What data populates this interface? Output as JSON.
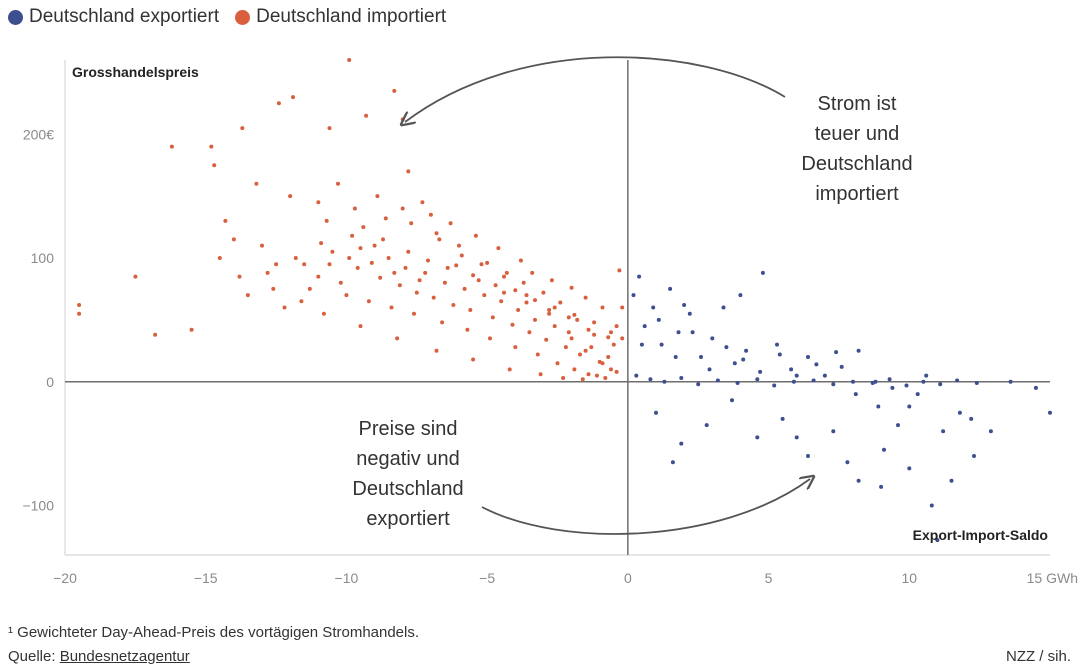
{
  "legend": {
    "export_label": "Deutschland exportiert",
    "import_label": "Deutschland importiert",
    "export_color": "#3e4f8f",
    "import_color": "#d8603f"
  },
  "annotations": {
    "top_right": [
      "Strom ist",
      "teuer und",
      "Deutschland",
      "importiert"
    ],
    "bottom_left": [
      "Preise sind",
      "negativ und",
      "Deutschland",
      "exportiert"
    ]
  },
  "footer": {
    "footnote": "¹ Gewichteter Day-Ahead-Preis des vortägigen Stromhandels.",
    "source_prefix": "Quelle: ",
    "source_name": "Bundesnetzagentur",
    "credit": "NZZ / sih."
  },
  "chart_data": {
    "type": "scatter",
    "ylabel": "Grosshandelspreis",
    "xlabel": "Export-Import-Saldo",
    "xlim": [
      -20,
      15
    ],
    "ylim": [
      -140,
      260
    ],
    "x_ticks": [
      "−20",
      "−15",
      "−10",
      "−5",
      "0",
      "5",
      "10",
      "15 GWh"
    ],
    "x_tick_values": [
      -20,
      -15,
      -10,
      -5,
      0,
      5,
      10,
      15
    ],
    "y_ticks": [
      "200€",
      "100",
      "0",
      "−100"
    ],
    "y_tick_values": [
      200,
      100,
      0,
      -100
    ],
    "grid": false,
    "legend_position": "top-left",
    "series": [
      {
        "name": "Deutschland importiert",
        "color": "#d8603f",
        "points": [
          [
            -19.5,
            62
          ],
          [
            -19.5,
            55
          ],
          [
            -17.5,
            85
          ],
          [
            -16.8,
            38
          ],
          [
            -16.2,
            190
          ],
          [
            -15.5,
            42
          ],
          [
            -14.8,
            190
          ],
          [
            -14.7,
            175
          ],
          [
            -14.3,
            130
          ],
          [
            -14.0,
            115
          ],
          [
            -13.7,
            205
          ],
          [
            -13.2,
            160
          ],
          [
            -12.4,
            225
          ],
          [
            -11.9,
            230
          ],
          [
            -10.6,
            205
          ],
          [
            -9.9,
            260
          ],
          [
            -9.3,
            215
          ],
          [
            -8.3,
            235
          ],
          [
            -8.0,
            212
          ],
          [
            -7.8,
            170
          ],
          [
            -7.3,
            145
          ],
          [
            -6.8,
            120
          ],
          [
            -6.0,
            110
          ],
          [
            -5.2,
            95
          ],
          [
            -4.4,
            85
          ],
          [
            -3.6,
            70
          ],
          [
            -2.8,
            55
          ],
          [
            -2.1,
            40
          ],
          [
            -1.5,
            25
          ],
          [
            -0.9,
            15
          ],
          [
            -0.4,
            8
          ],
          [
            -0.2,
            60
          ],
          [
            -0.3,
            90
          ],
          [
            -0.6,
            10
          ],
          [
            -1.1,
            5
          ],
          [
            -1.6,
            2
          ],
          [
            -2.3,
            3
          ],
          [
            -3.1,
            6
          ],
          [
            -4.2,
            10
          ],
          [
            -5.5,
            18
          ],
          [
            -6.8,
            25
          ],
          [
            -8.2,
            35
          ],
          [
            -9.5,
            45
          ],
          [
            -10.8,
            55
          ],
          [
            -12.2,
            60
          ],
          [
            -13.5,
            70
          ],
          [
            -11.5,
            95
          ],
          [
            -10.5,
            105
          ],
          [
            -9.8,
            118
          ],
          [
            -9.0,
            110
          ],
          [
            -8.5,
            100
          ],
          [
            -7.9,
            92
          ],
          [
            -7.2,
            88
          ],
          [
            -6.5,
            80
          ],
          [
            -5.8,
            75
          ],
          [
            -5.1,
            70
          ],
          [
            -4.5,
            65
          ],
          [
            -3.9,
            58
          ],
          [
            -3.3,
            50
          ],
          [
            -2.6,
            45
          ],
          [
            -2.0,
            35
          ],
          [
            -1.3,
            28
          ],
          [
            -0.7,
            20
          ],
          [
            -11.0,
            85
          ],
          [
            -10.2,
            80
          ],
          [
            -9.6,
            92
          ],
          [
            -8.8,
            84
          ],
          [
            -8.1,
            78
          ],
          [
            -7.5,
            72
          ],
          [
            -6.9,
            68
          ],
          [
            -6.2,
            62
          ],
          [
            -5.6,
            58
          ],
          [
            -4.8,
            52
          ],
          [
            -4.1,
            46
          ],
          [
            -3.5,
            40
          ],
          [
            -2.9,
            34
          ],
          [
            -2.2,
            28
          ],
          [
            -1.7,
            22
          ],
          [
            -1.0,
            16
          ],
          [
            -12.8,
            88
          ],
          [
            -11.8,
            100
          ],
          [
            -10.9,
            112
          ],
          [
            -9.4,
            125
          ],
          [
            -8.6,
            132
          ],
          [
            -7.7,
            128
          ],
          [
            -6.7,
            115
          ],
          [
            -5.9,
            102
          ],
          [
            -5.0,
            96
          ],
          [
            -4.3,
            88
          ],
          [
            -3.7,
            80
          ],
          [
            -3.0,
            72
          ],
          [
            -2.4,
            64
          ],
          [
            -1.8,
            50
          ],
          [
            -1.2,
            38
          ],
          [
            -0.5,
            30
          ],
          [
            -13.0,
            110
          ],
          [
            -12.5,
            95
          ],
          [
            -11.3,
            75
          ],
          [
            -10.0,
            70
          ],
          [
            -9.2,
            65
          ],
          [
            -8.4,
            60
          ],
          [
            -7.6,
            55
          ],
          [
            -6.6,
            48
          ],
          [
            -5.7,
            42
          ],
          [
            -4.9,
            35
          ],
          [
            -4.0,
            28
          ],
          [
            -3.2,
            22
          ],
          [
            -2.5,
            15
          ],
          [
            -1.9,
            10
          ],
          [
            -1.4,
            6
          ],
          [
            -0.8,
            3
          ],
          [
            -14.5,
            100
          ],
          [
            -13.8,
            85
          ],
          [
            -12.0,
            150
          ],
          [
            -11.0,
            145
          ],
          [
            -10.3,
            160
          ],
          [
            -9.7,
            140
          ],
          [
            -8.9,
            150
          ],
          [
            -8.0,
            140
          ],
          [
            -7.0,
            135
          ],
          [
            -6.3,
            128
          ],
          [
            -5.4,
            118
          ],
          [
            -4.6,
            108
          ],
          [
            -3.8,
            98
          ],
          [
            -3.4,
            88
          ],
          [
            -2.7,
            82
          ],
          [
            -2.0,
            76
          ],
          [
            -1.5,
            68
          ],
          [
            -0.9,
            60
          ],
          [
            -0.4,
            45
          ],
          [
            -0.2,
            35
          ],
          [
            -12.6,
            75
          ],
          [
            -11.6,
            65
          ],
          [
            -10.6,
            95
          ],
          [
            -9.9,
            100
          ],
          [
            -9.1,
            96
          ],
          [
            -8.3,
            88
          ],
          [
            -7.4,
            82
          ],
          [
            -6.4,
            92
          ],
          [
            -5.5,
            86
          ],
          [
            -4.7,
            78
          ],
          [
            -4.0,
            74
          ],
          [
            -3.3,
            66
          ],
          [
            -2.6,
            60
          ],
          [
            -1.9,
            54
          ],
          [
            -1.2,
            48
          ],
          [
            -0.6,
            40
          ],
          [
            -10.7,
            130
          ],
          [
            -9.5,
            108
          ],
          [
            -8.7,
            115
          ],
          [
            -7.8,
            105
          ],
          [
            -7.1,
            98
          ],
          [
            -6.1,
            94
          ],
          [
            -5.3,
            82
          ],
          [
            -4.4,
            72
          ],
          [
            -3.6,
            64
          ],
          [
            -2.8,
            58
          ],
          [
            -2.1,
            52
          ],
          [
            -1.4,
            42
          ],
          [
            -0.7,
            36
          ]
        ]
      },
      {
        "name": "Deutschland exportiert",
        "color": "#3e4f8f",
        "points": [
          [
            0.2,
            70
          ],
          [
            0.4,
            85
          ],
          [
            0.6,
            45
          ],
          [
            0.9,
            60
          ],
          [
            1.2,
            30
          ],
          [
            1.5,
            75
          ],
          [
            1.8,
            40
          ],
          [
            2.2,
            55
          ],
          [
            2.6,
            20
          ],
          [
            3.0,
            35
          ],
          [
            3.4,
            60
          ],
          [
            3.8,
            15
          ],
          [
            4.2,
            25
          ],
          [
            4.8,
            88
          ],
          [
            5.3,
            30
          ],
          [
            5.8,
            10
          ],
          [
            6.4,
            20
          ],
          [
            7.0,
            5
          ],
          [
            7.6,
            12
          ],
          [
            8.2,
            25
          ],
          [
            8.8,
            0
          ],
          [
            9.4,
            -5
          ],
          [
            10.0,
            -20
          ],
          [
            10.6,
            5
          ],
          [
            11.2,
            -40
          ],
          [
            11.8,
            -25
          ],
          [
            12.3,
            -60
          ],
          [
            12.9,
            -40
          ],
          [
            13.6,
            0
          ],
          [
            14.5,
            -5
          ],
          [
            15.0,
            -25
          ],
          [
            0.3,
            5
          ],
          [
            0.8,
            2
          ],
          [
            1.3,
            0
          ],
          [
            1.9,
            3
          ],
          [
            2.5,
            -2
          ],
          [
            3.2,
            1
          ],
          [
            3.9,
            -1
          ],
          [
            4.6,
            2
          ],
          [
            5.2,
            -3
          ],
          [
            5.9,
            0
          ],
          [
            6.6,
            1
          ],
          [
            7.3,
            -2
          ],
          [
            8.0,
            0
          ],
          [
            8.7,
            -1
          ],
          [
            9.3,
            2
          ],
          [
            9.9,
            -3
          ],
          [
            10.5,
            0
          ],
          [
            11.1,
            -2
          ],
          [
            11.7,
            1
          ],
          [
            12.4,
            -1
          ],
          [
            1.0,
            -25
          ],
          [
            1.9,
            -50
          ],
          [
            2.8,
            -35
          ],
          [
            3.7,
            -15
          ],
          [
            4.6,
            -45
          ],
          [
            5.5,
            -30
          ],
          [
            6.4,
            -60
          ],
          [
            7.3,
            -40
          ],
          [
            8.2,
            -80
          ],
          [
            9.1,
            -55
          ],
          [
            10.0,
            -70
          ],
          [
            10.8,
            -100
          ],
          [
            11.5,
            -80
          ],
          [
            12.2,
            -30
          ],
          [
            0.5,
            30
          ],
          [
            1.1,
            50
          ],
          [
            1.7,
            20
          ],
          [
            2.3,
            40
          ],
          [
            2.9,
            10
          ],
          [
            3.5,
            28
          ],
          [
            4.1,
            18
          ],
          [
            4.7,
            8
          ],
          [
            5.4,
            22
          ],
          [
            6.0,
            5
          ],
          [
            6.7,
            14
          ],
          [
            7.4,
            24
          ],
          [
            8.1,
            -10
          ],
          [
            8.9,
            -20
          ],
          [
            9.6,
            -35
          ],
          [
            10.3,
            -10
          ],
          [
            11.0,
            -128
          ],
          [
            1.6,
            -65
          ],
          [
            6.0,
            -45
          ],
          [
            7.8,
            -65
          ],
          [
            9.0,
            -85
          ],
          [
            4.0,
            70
          ],
          [
            2.0,
            62
          ]
        ]
      }
    ]
  }
}
